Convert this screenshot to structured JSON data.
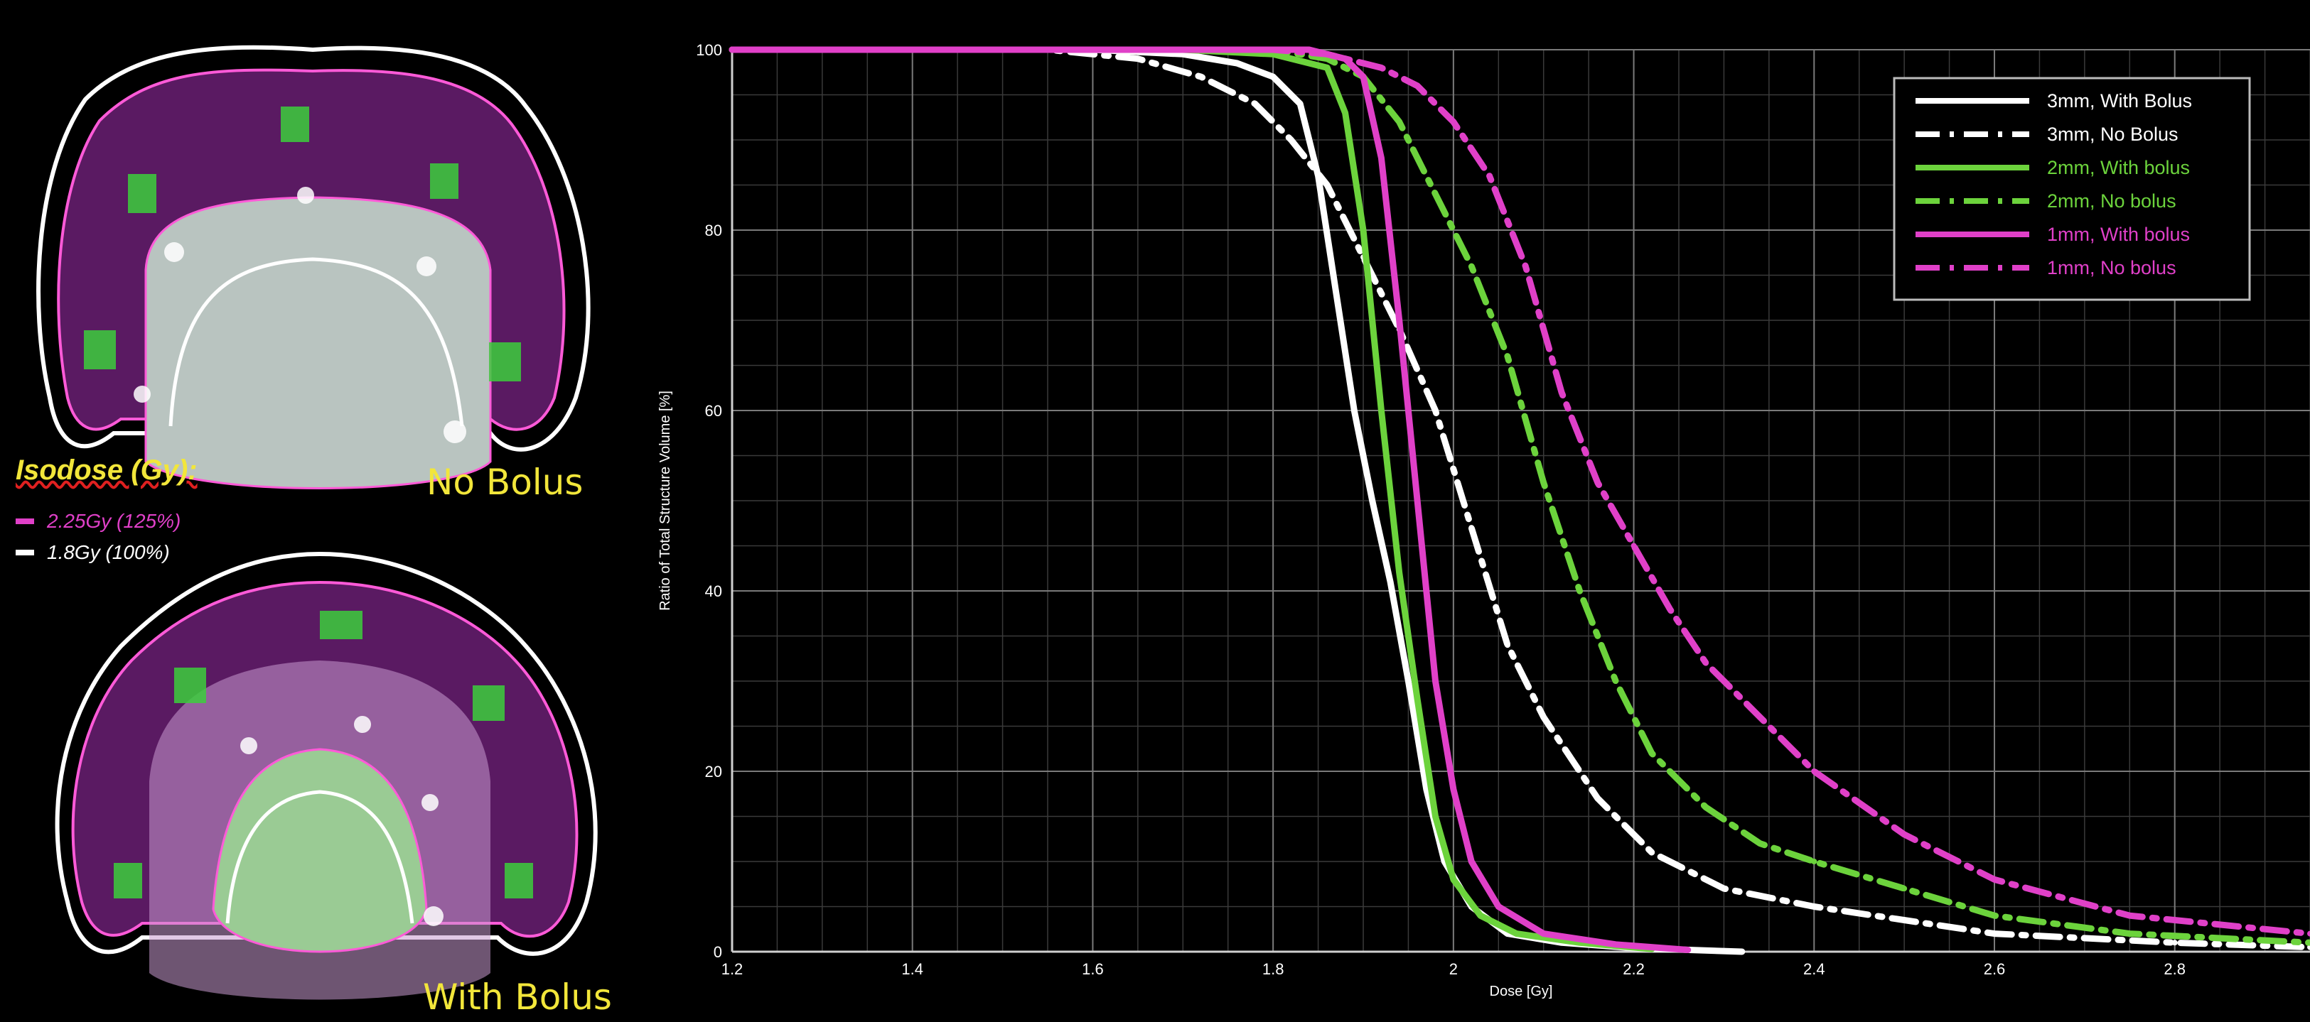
{
  "left_panel": {
    "top_label": "No Bolus",
    "bottom_label": "With Bolus",
    "isodose_title": "Isodose (Gy):",
    "isodose_lines": [
      {
        "label": "2.25Gy (125%)",
        "color": "#e040c8"
      },
      {
        "label": "1.8Gy (100%)",
        "color": "#ffffff"
      }
    ]
  },
  "chart_data": {
    "type": "line",
    "title": "",
    "xlabel": "Dose [Gy]",
    "ylabel": "Ratio of Total Structure Volume [%]",
    "xlim": [
      1.2,
      2.95
    ],
    "ylim": [
      0,
      100
    ],
    "xticks": [
      1.2,
      1.4,
      1.6,
      1.8,
      2,
      2.2,
      2.4,
      2.6,
      2.8
    ],
    "xtick_labels": [
      "1.2",
      "1.4",
      "1.6",
      "1.8",
      "2",
      "2.2",
      "2.4",
      "2.6",
      "2.8"
    ],
    "yticks": [
      0,
      20,
      40,
      60,
      80,
      100
    ],
    "ytick_labels": [
      "0",
      "20",
      "40",
      "60",
      "80",
      "100"
    ],
    "grid": true,
    "legend_position": "top-right",
    "series": [
      {
        "name": "3mm, With Bolus",
        "color": "#ffffff",
        "style": "solid",
        "x": [
          1.2,
          1.6,
          1.7,
          1.76,
          1.8,
          1.83,
          1.85,
          1.87,
          1.89,
          1.91,
          1.93,
          1.95,
          1.97,
          1.99,
          2.02,
          2.06,
          2.12,
          2.2,
          2.32
        ],
        "y": [
          100,
          100,
          99.5,
          98.5,
          97,
          94,
          86,
          73,
          60,
          50,
          41,
          30,
          18,
          10,
          5,
          2,
          1,
          0.4,
          0
        ]
      },
      {
        "name": "3mm, No Bolus",
        "color": "#ffffff",
        "style": "dashdot",
        "x": [
          1.2,
          1.55,
          1.65,
          1.72,
          1.78,
          1.82,
          1.86,
          1.9,
          1.94,
          1.98,
          2.02,
          2.06,
          2.1,
          2.16,
          2.22,
          2.3,
          2.4,
          2.6,
          2.8,
          2.95
        ],
        "y": [
          100,
          100,
          99,
          97,
          94,
          90,
          85,
          77,
          69,
          60,
          47,
          34,
          26,
          17,
          11,
          7,
          5,
          2,
          1,
          0.5
        ]
      },
      {
        "name": "2mm, With bolus",
        "color": "#6cd33c",
        "style": "solid",
        "x": [
          1.2,
          1.7,
          1.8,
          1.86,
          1.88,
          1.9,
          1.92,
          1.94,
          1.96,
          1.98,
          2.0,
          2.03,
          2.07,
          2.14,
          2.22
        ],
        "y": [
          100,
          100,
          99.5,
          98,
          93,
          80,
          60,
          42,
          28,
          15,
          8,
          4,
          2,
          1,
          0.3
        ]
      },
      {
        "name": "2mm, No bolus",
        "color": "#6cd33c",
        "style": "dashdot",
        "x": [
          1.2,
          1.8,
          1.86,
          1.9,
          1.94,
          1.98,
          2.02,
          2.06,
          2.1,
          2.14,
          2.18,
          2.22,
          2.28,
          2.34,
          2.4,
          2.5,
          2.6,
          2.75,
          2.95
        ],
        "y": [
          100,
          100,
          99,
          97,
          92,
          84,
          76,
          66,
          52,
          40,
          30,
          22,
          16,
          12,
          10,
          7,
          4,
          2,
          1
        ]
      },
      {
        "name": "1mm, With bolus",
        "color": "#e040c8",
        "style": "solid",
        "x": [
          1.2,
          1.84,
          1.88,
          1.9,
          1.92,
          1.94,
          1.96,
          1.98,
          2.0,
          2.02,
          2.05,
          2.1,
          2.18,
          2.26
        ],
        "y": [
          100,
          100,
          99,
          97,
          88,
          70,
          50,
          30,
          18,
          10,
          5,
          2,
          0.8,
          0.2
        ]
      },
      {
        "name": "1mm, No bolus",
        "color": "#e040c8",
        "style": "dashdot",
        "x": [
          1.2,
          1.8,
          1.86,
          1.92,
          1.96,
          2.0,
          2.04,
          2.08,
          2.12,
          2.16,
          2.2,
          2.24,
          2.28,
          2.34,
          2.4,
          2.5,
          2.6,
          2.75,
          2.95
        ],
        "y": [
          100,
          100,
          99.5,
          98,
          96,
          92,
          86,
          76,
          62,
          52,
          45,
          38,
          32,
          26,
          20,
          13,
          8,
          4,
          2
        ]
      }
    ]
  }
}
